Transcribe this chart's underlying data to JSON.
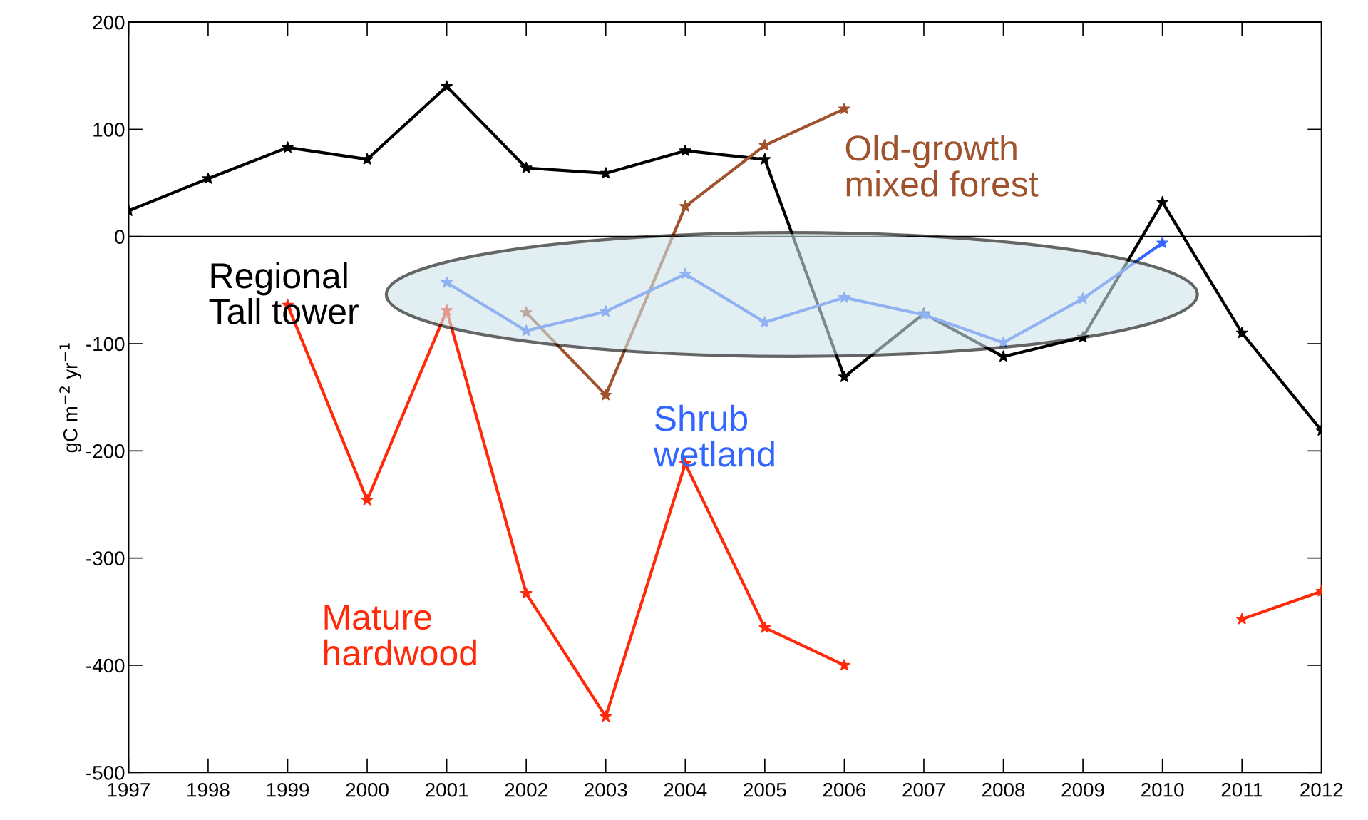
{
  "chart_data": {
    "type": "line",
    "ylabel": "gC m$^{−2}$ yr$^{−1}$",
    "categories": [
      "1997",
      "1998",
      "1999",
      "2000",
      "2001",
      "2002",
      "2003",
      "2004",
      "2005",
      "2006",
      "2007",
      "2008",
      "2009",
      "2010",
      "2011",
      "2012"
    ],
    "ylim": [
      -500,
      200
    ],
    "yticks": [
      -500,
      -400,
      -300,
      -200,
      -100,
      0,
      100,
      200
    ],
    "marker": "star",
    "line_style": "solid",
    "grid": false,
    "legend": false,
    "ref_lines": [
      {
        "axis": "y",
        "value": 0,
        "color": "#000000"
      }
    ],
    "series": [
      {
        "name": "Regional\nTall tower",
        "color": "#000000",
        "values": [
          24,
          54,
          83,
          72,
          140,
          64,
          59,
          80,
          72,
          -131,
          -72,
          -112,
          -94,
          32,
          -90,
          -181
        ]
      },
      {
        "name": "Mature\nhardwood",
        "color": "#ff2a0a",
        "values": [
          null,
          null,
          -64,
          -246,
          -69,
          -333,
          -448,
          -212,
          -365,
          -400,
          null,
          null,
          null,
          null,
          -357,
          -331
        ]
      },
      {
        "name": "Old-growth\nmixed forest",
        "color": "#a0522d",
        "values": [
          null,
          null,
          null,
          null,
          null,
          -71,
          -148,
          28,
          85,
          119,
          null,
          null,
          null,
          null,
          null,
          null
        ]
      },
      {
        "name": "Shrub\nwetland",
        "color": "#3366ff",
        "values": [
          null,
          null,
          null,
          null,
          -43,
          -88,
          -70,
          -35,
          -80,
          -57,
          -73,
          -99,
          -58,
          -6,
          null,
          null
        ]
      }
    ]
  }
}
